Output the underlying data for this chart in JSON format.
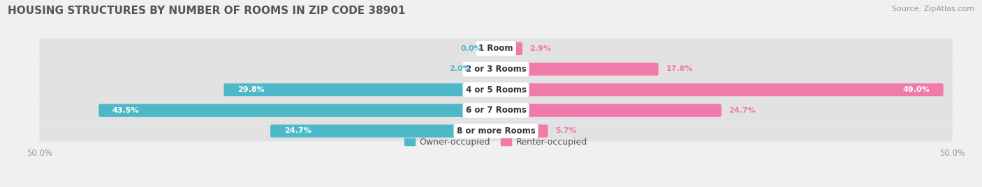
{
  "title": "HOUSING STRUCTURES BY NUMBER OF ROOMS IN ZIP CODE 38901",
  "source": "Source: ZipAtlas.com",
  "categories": [
    "1 Room",
    "2 or 3 Rooms",
    "4 or 5 Rooms",
    "6 or 7 Rooms",
    "8 or more Rooms"
  ],
  "owner_values": [
    0.0,
    2.0,
    29.8,
    43.5,
    24.7
  ],
  "renter_values": [
    2.9,
    17.8,
    49.0,
    24.7,
    5.7
  ],
  "owner_color": "#4db8c8",
  "renter_color": "#f07aaa",
  "axis_limit": 50.0,
  "bar_height": 0.62,
  "bg_color": "#f0f0f0",
  "row_bg_color": "#e2e2e2",
  "label_color_owner_outside": "#4db8c8",
  "label_color_renter_outside": "#f07aaa",
  "label_inside_color": "#ffffff",
  "title_fontsize": 11,
  "source_fontsize": 8,
  "tick_fontsize": 8.5,
  "legend_fontsize": 9,
  "value_fontsize": 8
}
